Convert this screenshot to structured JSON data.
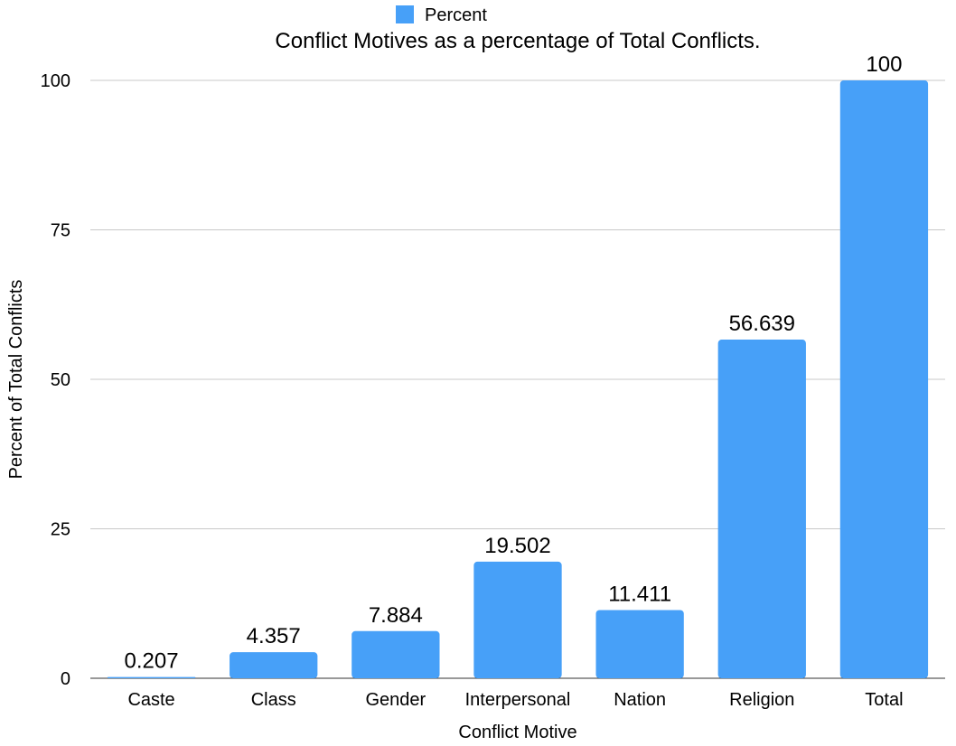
{
  "chart_data": {
    "type": "bar",
    "title": "Conflict Motives as a percentage of Total Conflicts.",
    "xlabel": "Conflict Motive",
    "ylabel": "Percent of Total Conflicts",
    "categories": [
      "Caste",
      "Class",
      "Gender",
      "Interpersonal",
      "Nation",
      "Religion",
      "Total"
    ],
    "series": [
      {
        "name": "Percent",
        "values": [
          0.207,
          4.357,
          7.884,
          19.502,
          11.411,
          56.639,
          100
        ]
      }
    ],
    "data_labels": [
      "0.207",
      "4.357",
      "7.884",
      "19.502",
      "11.411",
      "56.639",
      "100"
    ],
    "ylim": [
      0,
      100
    ],
    "yticks": [
      0,
      25,
      50,
      75,
      100
    ],
    "grid": true,
    "legend_position": "top",
    "colors": {
      "bar": "#47a0f8",
      "grid": "#c8c8c8"
    }
  }
}
